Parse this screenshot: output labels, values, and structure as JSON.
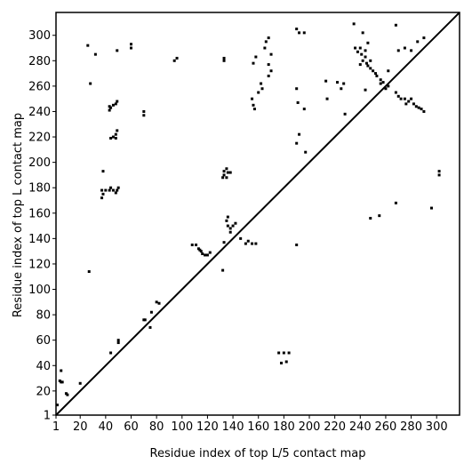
{
  "chart_data": {
    "type": "scatter",
    "x_label": "Residue index of top L/5 contact map",
    "y_label": "Residue index of top L contact map",
    "xlim": [
      1,
      318
    ],
    "ylim": [
      1,
      318
    ],
    "xticks": [
      1,
      20,
      40,
      60,
      80,
      100,
      120,
      140,
      160,
      180,
      200,
      220,
      240,
      260,
      280,
      300
    ],
    "yticks": [
      1,
      20,
      40,
      60,
      80,
      100,
      120,
      140,
      160,
      180,
      200,
      220,
      240,
      260,
      280,
      300
    ],
    "diagonal": true,
    "color": "#000000",
    "x": [
      2,
      4,
      5,
      6,
      5,
      9,
      10,
      20,
      27,
      26,
      28,
      32,
      44,
      37,
      40,
      43,
      46,
      49,
      50,
      38,
      37,
      44,
      48,
      43,
      44,
      46,
      48,
      49,
      43,
      44,
      46,
      48,
      49,
      48,
      49,
      38,
      50,
      50,
      60,
      60,
      70,
      70,
      70,
      71,
      75,
      76,
      80,
      82,
      94,
      96,
      108,
      111,
      113,
      114,
      115,
      116,
      118,
      120,
      122,
      132,
      133,
      133,
      132,
      133,
      135,
      136,
      135,
      138,
      133,
      135,
      136,
      136,
      138,
      138,
      140,
      142,
      133,
      146,
      150,
      152,
      155,
      158,
      155,
      156,
      157,
      160,
      156,
      158,
      162,
      163,
      165,
      166,
      168,
      168,
      170,
      170,
      168,
      176,
      180,
      184,
      178,
      182,
      190,
      192,
      196,
      190,
      191,
      192,
      190,
      196,
      197,
      190,
      213,
      214,
      222,
      225,
      227,
      228,
      235,
      236,
      238,
      240,
      241,
      242,
      244,
      245,
      246,
      248,
      248,
      250,
      252,
      253,
      256,
      256,
      258,
      240,
      244,
      242,
      244,
      246,
      248,
      255,
      260,
      262,
      262,
      268,
      268,
      268,
      270,
      272,
      275,
      278,
      280,
      282,
      284,
      286,
      288,
      290,
      276,
      270,
      275,
      280,
      285,
      290,
      296,
      302,
      302
    ],
    "values": [
      9,
      28,
      27,
      27,
      36,
      18,
      17,
      26,
      114,
      292,
      262,
      285,
      50,
      178,
      178,
      178,
      178,
      178,
      180,
      175,
      172,
      180,
      176,
      241,
      243,
      245,
      246,
      248,
      244,
      219,
      220,
      222,
      225,
      219,
      288,
      193,
      58,
      60,
      290,
      293,
      240,
      237,
      76,
      76,
      70,
      82,
      90,
      89,
      280,
      282,
      135,
      135,
      132,
      131,
      130,
      128,
      127,
      127,
      129,
      115,
      280,
      282,
      188,
      190,
      188,
      192,
      195,
      192,
      193,
      154,
      157,
      150,
      148,
      145,
      150,
      152,
      137,
      140,
      136,
      138,
      136,
      136,
      250,
      245,
      242,
      255,
      278,
      283,
      262,
      258,
      290,
      295,
      298,
      277,
      285,
      272,
      268,
      50,
      50,
      50,
      42,
      43,
      305,
      302,
      302,
      258,
      247,
      222,
      215,
      242,
      208,
      135,
      264,
      250,
      263,
      258,
      262,
      238,
      309,
      290,
      287,
      290,
      285,
      280,
      283,
      278,
      276,
      274,
      280,
      272,
      270,
      268,
      265,
      262,
      263,
      277,
      288,
      302,
      257,
      294,
      156,
      158,
      258,
      260,
      272,
      308,
      168,
      255,
      252,
      250,
      250,
      248,
      250,
      246,
      244,
      243,
      242,
      240,
      246,
      288,
      290,
      288,
      295,
      298,
      164,
      190,
      193
    ]
  }
}
